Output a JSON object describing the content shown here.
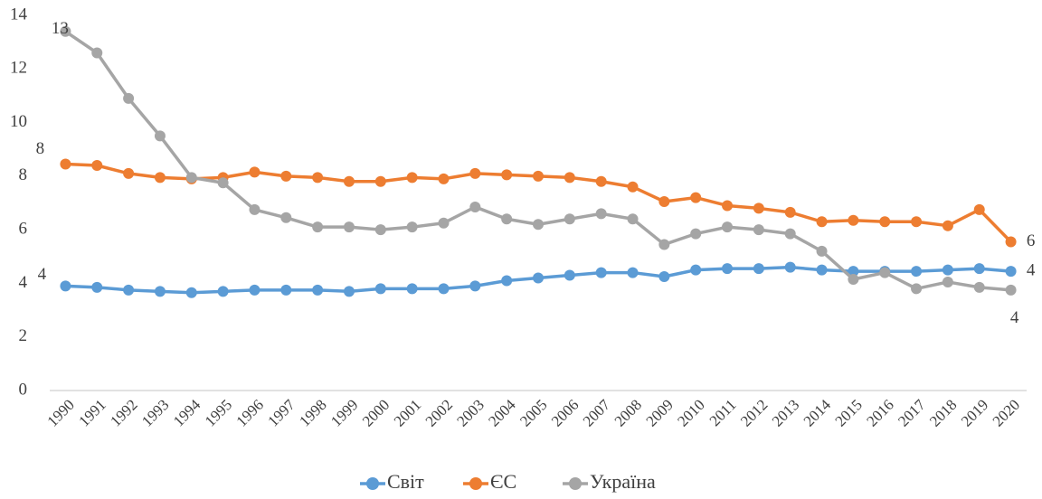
{
  "chart_data": {
    "type": "line",
    "categories": [
      "1990",
      "1991",
      "1992",
      "1993",
      "1994",
      "1995",
      "1996",
      "1997",
      "1998",
      "1999",
      "2000",
      "2001",
      "2002",
      "2003",
      "2004",
      "2005",
      "2006",
      "2007",
      "2008",
      "2009",
      "2010",
      "2011",
      "2012",
      "2013",
      "2014",
      "2015",
      "2016",
      "2017",
      "2018",
      "2019",
      "2020"
    ],
    "series": [
      {
        "name": "Світ",
        "color": "#5b9bd5",
        "values": [
          3.9,
          3.85,
          3.75,
          3.7,
          3.65,
          3.7,
          3.75,
          3.75,
          3.75,
          3.7,
          3.8,
          3.8,
          3.8,
          3.9,
          4.1,
          4.2,
          4.3,
          4.4,
          4.4,
          4.25,
          4.5,
          4.55,
          4.55,
          4.6,
          4.5,
          4.45,
          4.45,
          4.45,
          4.5,
          4.55,
          4.45
        ],
        "value_labels": [
          "4",
          null,
          null,
          null,
          null,
          null,
          null,
          null,
          null,
          null,
          null,
          null,
          null,
          null,
          null,
          null,
          null,
          null,
          null,
          null,
          null,
          null,
          null,
          null,
          null,
          null,
          null,
          null,
          null,
          null,
          "4"
        ]
      },
      {
        "name": "ЄС",
        "color": "#ed7d31",
        "values": [
          8.45,
          8.4,
          8.1,
          7.95,
          7.9,
          7.95,
          8.15,
          8.0,
          7.95,
          7.8,
          7.8,
          7.95,
          7.9,
          8.1,
          8.05,
          8.0,
          7.95,
          7.8,
          7.6,
          7.05,
          7.2,
          6.9,
          6.8,
          6.65,
          6.3,
          6.35,
          6.3,
          6.3,
          6.15,
          6.75,
          5.55
        ],
        "value_labels": [
          "8",
          null,
          null,
          null,
          null,
          null,
          null,
          null,
          null,
          null,
          null,
          null,
          null,
          null,
          null,
          null,
          null,
          null,
          null,
          null,
          null,
          null,
          null,
          null,
          null,
          null,
          null,
          null,
          null,
          null,
          "6"
        ]
      },
      {
        "name": "Україна",
        "color": "#a5a5a5",
        "values": [
          13.4,
          12.6,
          10.9,
          9.5,
          7.95,
          7.75,
          6.75,
          6.45,
          6.1,
          6.1,
          6.0,
          6.1,
          6.25,
          6.85,
          6.4,
          6.2,
          6.4,
          6.6,
          6.4,
          5.45,
          5.85,
          6.1,
          6.0,
          5.85,
          5.2,
          4.15,
          4.4,
          3.8,
          4.05,
          3.85,
          3.75
        ],
        "value_labels": [
          "13",
          null,
          null,
          null,
          null,
          null,
          null,
          null,
          null,
          null,
          null,
          null,
          null,
          null,
          null,
          null,
          null,
          null,
          null,
          null,
          null,
          null,
          null,
          null,
          null,
          null,
          null,
          null,
          null,
          null,
          "4"
        ]
      }
    ],
    "ylim": [
      0,
      14
    ],
    "yticks": [
      0,
      2,
      4,
      6,
      8,
      10,
      12,
      14
    ],
    "grid": false,
    "legend": "bottom"
  }
}
